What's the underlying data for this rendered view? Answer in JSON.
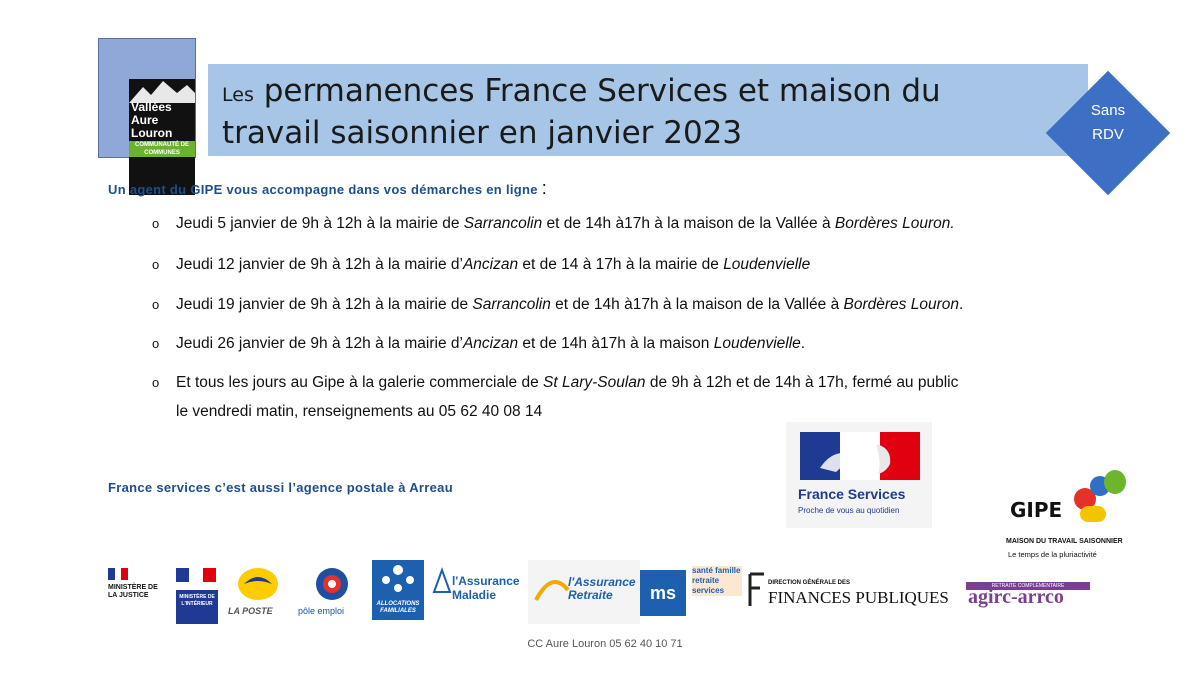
{
  "logo": {
    "line1": "Vallées",
    "line2": "Aure",
    "line3": "Louron",
    "community": "COMMUNAUTÉ DE COMMUNES"
  },
  "title": {
    "prefix": "Les",
    "line1": "permanences France Services et maison du",
    "line2": "travail saisonnier en janvier 2023"
  },
  "badge": {
    "line1": "Sans",
    "line2": "RDV",
    "color": "#3d6fc5"
  },
  "intro": {
    "text": "Un agent du GIPE vous accompagne dans vos démarches en ligne",
    "colon": ":"
  },
  "bullets": [
    {
      "a": "Jeudi 5 janvier de 9h à 12h à la mairie de ",
      "b": "Sarrancolin",
      "c": " et de 14h à17h à la maison de la Vallée à ",
      "d": "Bordères Louron.",
      "e": ""
    },
    {
      "a": "Jeudi 12 janvier de 9h à 12h à la mairie d’",
      "b": "Ancizan",
      "c": " et de 14 à 17h à la mairie de ",
      "d": "Loudenvielle",
      "e": ""
    },
    {
      "a": "Jeudi 19 janvier   de 9h à 12h à la mairie de ",
      "b": "Sarrancolin",
      "c": " et de 14h à17h à la maison de la Vallée à ",
      "d": "Bordères Louron",
      "e": "."
    },
    {
      "a": "Jeudi 26 janvier   de 9h à 12h à la mairie d’",
      "b": "Ancizan",
      "c": " et de 14h à17h à la maison ",
      "d": "Loudenvielle",
      "e": "."
    },
    {
      "a": "Et tous les jours  au Gipe à la galerie commerciale de ",
      "b": "St Lary-Soulan",
      "c": " de 9h à 12h et de 14h à 17h, fermé au public",
      "d": "",
      "e": ""
    }
  ],
  "bullet5_cont": "le vendredi matin, renseignements au 05 62 40 08 14",
  "postal": "France services c’est aussi l’agence postale à Arreau",
  "fs_logo": {
    "name": "France Services",
    "tagline": "Proche de vous au quotidien"
  },
  "gipe": {
    "name": "GIPE",
    "sub1": "MAISON DU TRAVAIL SAISONNIER",
    "sub2": "Le temps de la pluriactivité"
  },
  "partners": {
    "justice": "MINISTÈRE DE LA JUSTICE",
    "interieur": "MINISTÈRE DE L'INTÉRIEUR",
    "laposte": "LA POSTE",
    "pole": "pôle emploi",
    "caf": "ALLOCATIONS FAMILIALES",
    "assurance_maladie": "l'Assurance Maladie",
    "assurance_retraite": "l'Assurance Retraite",
    "msa": "santé famille retraite services",
    "dgfip_top": "DIRECTION GÉNÉRALE DES",
    "dgfip": "FINANCES PUBLIQUES",
    "agirc_top": "RETRAITE COMPLÉMENTAIRE",
    "agirc": "agirc-arrco"
  },
  "footer": "CC Aure Louron  05 62 40 10 71"
}
